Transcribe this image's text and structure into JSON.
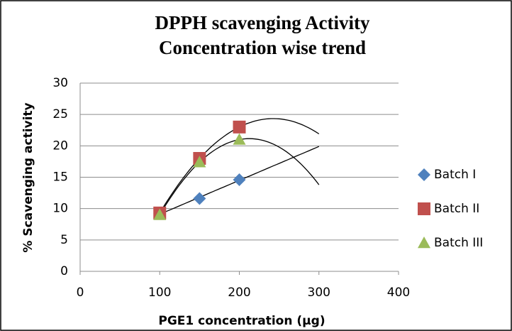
{
  "chart_data": {
    "type": "scatter",
    "title": [
      "DPPH scavenging Activity",
      "Concentration wise trend"
    ],
    "x_label": "PGE1 concentration (µg)",
    "y_label": "% Scavenging activity",
    "x": [
      100,
      150,
      200
    ],
    "series": [
      {
        "name": "Batch I",
        "color": "#4f81bd",
        "marker": "diamond",
        "values": [
          9.2,
          11.6,
          14.6
        ],
        "trendline": "linear",
        "trendline_range": [
          100,
          300
        ]
      },
      {
        "name": "Batch II",
        "color": "#c0504d",
        "marker": "square",
        "values": [
          9.3,
          18,
          23
        ],
        "trendline": "polynomial",
        "trendline_range": [
          100,
          300
        ]
      },
      {
        "name": "Batch III",
        "color": "#9bbb59",
        "marker": "triangle",
        "values": [
          9,
          17.4,
          21
        ],
        "trendline": "polynomial",
        "trendline_range": [
          100,
          300
        ]
      }
    ],
    "xlim": [
      0,
      400
    ],
    "xticks": [
      0,
      100,
      200,
      300,
      400
    ],
    "ylim": [
      0,
      30
    ],
    "yticks": [
      0,
      5,
      10,
      15,
      20,
      25,
      30
    ],
    "grid": true,
    "legend": "right"
  }
}
